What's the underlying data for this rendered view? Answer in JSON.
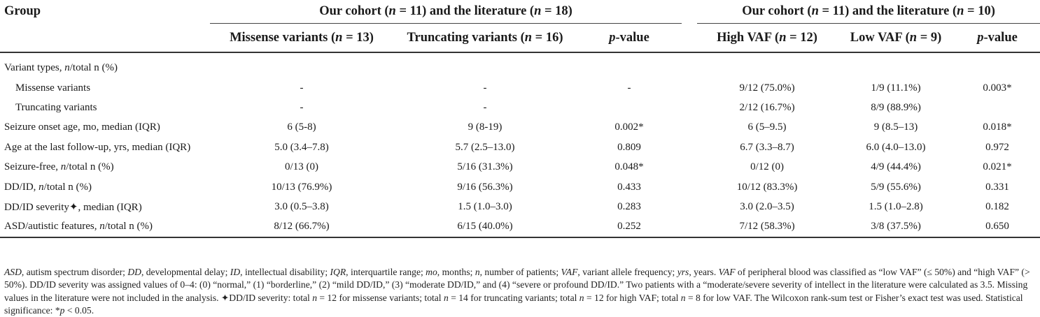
{
  "header": {
    "group_label": "Group",
    "span1_label": "Our cohort (n = 11) and the literature (n = 18)",
    "span2_label": "Our cohort (n = 11) and the literature (n = 10)",
    "columns": [
      "Missense variants (n = 13)",
      "Truncating variants (n = 16)",
      "p-value",
      "High VAF (n = 12)",
      "Low VAF (n = 9)",
      "p-value"
    ]
  },
  "rows": [
    {
      "label": "Variant types, n/total n (%)",
      "section": true,
      "cells": [
        "",
        "",
        "",
        "",
        "",
        ""
      ]
    },
    {
      "label": "Missense variants",
      "indent": true,
      "cells": [
        "-",
        "-",
        "-",
        "9/12 (75.0%)",
        "1/9 (11.1%)",
        "0.003*"
      ]
    },
    {
      "label": "Truncating variants",
      "indent": true,
      "cells": [
        "-",
        "-",
        "",
        "2/12 (16.7%)",
        "8/9 (88.9%)",
        ""
      ]
    },
    {
      "label": "Seizure onset age, mo, median (IQR)",
      "cells": [
        "6 (5-8)",
        "9 (8-19)",
        "0.002*",
        "6 (5–9.5)",
        "9 (8.5–13)",
        "0.018*"
      ]
    },
    {
      "label": "Age at the last follow-up, yrs, median (IQR)",
      "cells": [
        "5.0 (3.4–7.8)",
        "5.7 (2.5–13.0)",
        "0.809",
        "6.7 (3.3–8.7)",
        "6.0 (4.0–13.0)",
        "0.972"
      ]
    },
    {
      "label": "Seizure-free, n/total n (%)",
      "cells": [
        "0/13 (0)",
        "5/16 (31.3%)",
        "0.048*",
        "0/12 (0)",
        "4/9 (44.4%)",
        "0.021*"
      ]
    },
    {
      "label": "DD/ID, n/total n (%)",
      "cells": [
        "10/13 (76.9%)",
        "9/16 (56.3%)",
        "0.433",
        "10/12 (83.3%)",
        "5/9 (55.6%)",
        "0.331"
      ]
    },
    {
      "label": "DD/ID severity✦, median (IQR)",
      "cells": [
        "3.0 (0.5–3.8)",
        "1.5 (1.0–3.0)",
        "0.283",
        "3.0 (2.0–3.5)",
        "1.5 (1.0–2.8)",
        "0.182"
      ]
    },
    {
      "label": "ASD/autistic features, n/total n (%)",
      "cells": [
        "8/12 (66.7%)",
        "6/15 (40.0%)",
        "0.252",
        "7/12 (58.3%)",
        "3/8 (37.5%)",
        "0.650"
      ]
    }
  ],
  "footnote": "ASD, autism spectrum disorder; DD, developmental delay; ID, intellectual disability; IQR, interquartile range; mo, months; n, number of patients; VAF, variant allele frequency; yrs, years. VAF of peripheral blood was classified as “low VAF” (≤ 50%) and “high VAF” (> 50%). DD/ID severity was assigned values of 0–4: (0) “normal,” (1) “borderline,” (2) “mild DD/ID,” (3) “moderate DD/ID,” and (4) “severe or profound DD/ID.” Two patients with a “moderate/severe severity of intellect in the literature were calculated as 3.5. Missing values in the literature were not included in the analysis. ✦DD/ID severity: total n = 12 for missense variants; total n = 14 for truncating variants; total n = 12 for high VAF; total n = 8 for low VAF. The Wilcoxon rank-sum test or Fisher’s exact test was used. Statistical significance: *p < 0.05."
}
